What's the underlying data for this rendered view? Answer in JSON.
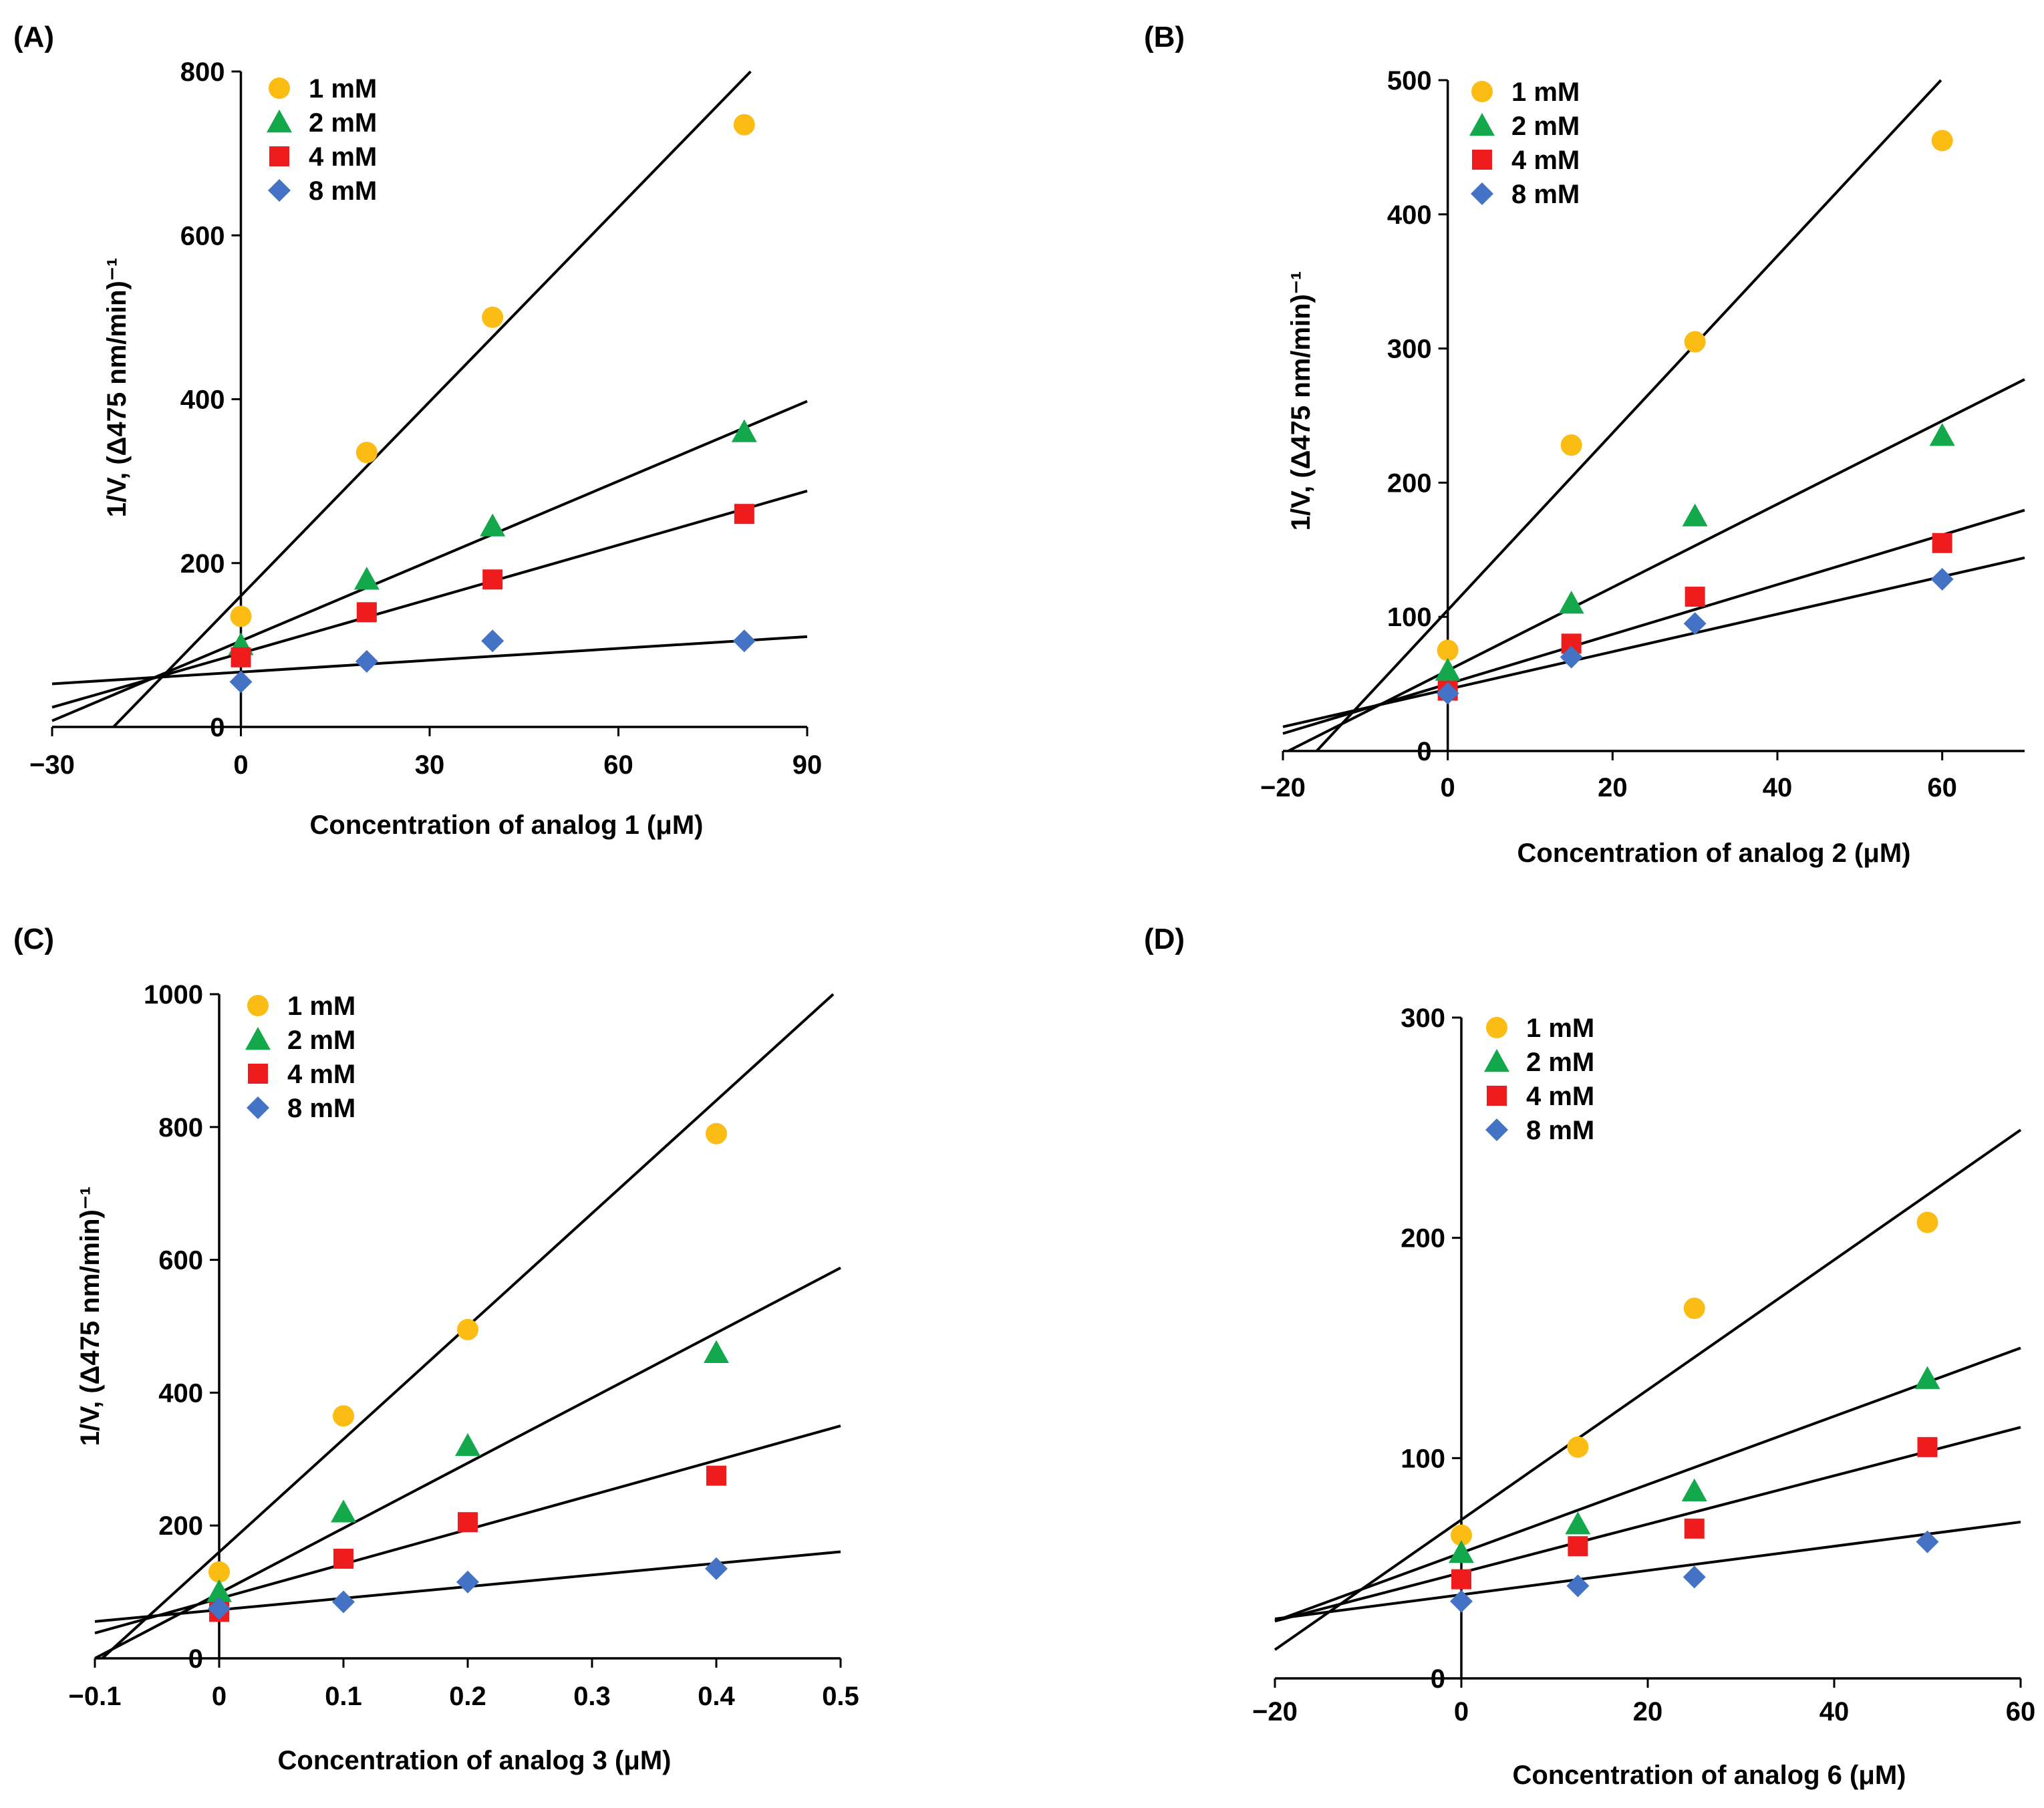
{
  "colors": {
    "1 mM": "#FBBC14",
    "2 mM": "#12A84B",
    "4 mM": "#EE1C1C",
    "8 mM": "#4472C4"
  },
  "chart_data": [
    {
      "type": "scatter",
      "panel": "(A)",
      "xlabel": "Concentration of analog 1 (μM)",
      "ylabel": "1/V, (Δ475 nm/min)⁻¹",
      "xlim": [
        -30,
        90
      ],
      "ylim": [
        0,
        800
      ],
      "xticks": [
        -30,
        0,
        30,
        60,
        90
      ],
      "xtick_labels": [
        "−30",
        "0",
        "30",
        "60",
        "90"
      ],
      "yticks": [
        0,
        200,
        400,
        600,
        800
      ],
      "ytick_labels": [
        "0",
        "200",
        "400",
        "600",
        "800"
      ],
      "x": [
        0,
        20,
        40,
        80
      ],
      "legend_position": "top-left",
      "series": [
        {
          "name": "1 mM",
          "marker": "circle",
          "values": [
            135,
            335,
            500,
            735
          ],
          "fit": {
            "slope": 7.9,
            "intercept": 160
          }
        },
        {
          "name": "2 mM",
          "marker": "triangle",
          "values": [
            100,
            180,
            245,
            360
          ],
          "fit": {
            "slope": 3.25,
            "intercept": 105
          }
        },
        {
          "name": "4 mM",
          "marker": "square",
          "values": [
            85,
            140,
            180,
            260
          ],
          "fit": {
            "slope": 2.2,
            "intercept": 90
          }
        },
        {
          "name": "8 mM",
          "marker": "diamond",
          "values": [
            55,
            80,
            105,
            105
          ],
          "fit": {
            "slope": 0.48,
            "intercept": 67
          }
        }
      ]
    },
    {
      "type": "scatter",
      "panel": "(B)",
      "xlabel": "Concentration of analog 2 (μM)",
      "ylabel": "1/V, (Δ475 nm/min)⁻¹",
      "xlim": [
        -20,
        70
      ],
      "ylim": [
        0,
        500
      ],
      "xticks": [
        -20,
        0,
        20,
        40,
        60
      ],
      "xtick_labels": [
        "−20",
        "0",
        "20",
        "40",
        "60"
      ],
      "yticks": [
        0,
        100,
        200,
        300,
        400,
        500
      ],
      "ytick_labels": [
        "0",
        "100",
        "200",
        "300",
        "400",
        "500"
      ],
      "x": [
        0,
        15,
        30,
        60
      ],
      "legend_position": "top-left",
      "series": [
        {
          "name": "1 mM",
          "marker": "circle",
          "values": [
            75,
            228,
            305,
            455
          ],
          "fit": {
            "slope": 6.6,
            "intercept": 105
          }
        },
        {
          "name": "2 mM",
          "marker": "triangle",
          "values": [
            60,
            110,
            175,
            235
          ],
          "fit": {
            "slope": 3.1,
            "intercept": 60
          }
        },
        {
          "name": "4 mM",
          "marker": "square",
          "values": [
            45,
            80,
            115,
            155
          ],
          "fit": {
            "slope": 1.85,
            "intercept": 50
          }
        },
        {
          "name": "8 mM",
          "marker": "diamond",
          "values": [
            43,
            70,
            95,
            128
          ],
          "fit": {
            "slope": 1.4,
            "intercept": 46
          }
        }
      ]
    },
    {
      "type": "scatter",
      "panel": "(C)",
      "xlabel": "Concentration of analog 3 (μM)",
      "ylabel": "1/V, (Δ475 nm/min)⁻¹",
      "xlim": [
        -0.1,
        0.5
      ],
      "ylim": [
        0,
        1000
      ],
      "xticks": [
        -0.1,
        0,
        0.1,
        0.2,
        0.3,
        0.4,
        0.5
      ],
      "xtick_labels": [
        "−0.1",
        "0",
        "0.1",
        "0.2",
        "0.3",
        "0.4",
        "0.5"
      ],
      "yticks": [
        0,
        200,
        400,
        600,
        800,
        1000
      ],
      "ytick_labels": [
        "0",
        "200",
        "400",
        "600",
        "800",
        "1000"
      ],
      "x": [
        0,
        0.1,
        0.2,
        0.4
      ],
      "legend_position": "top-left",
      "series": [
        {
          "name": "1 mM",
          "marker": "circle",
          "values": [
            130,
            365,
            495,
            790
          ],
          "fit": {
            "slope": 1700,
            "intercept": 160
          }
        },
        {
          "name": "2 mM",
          "marker": "triangle",
          "values": [
            100,
            220,
            320,
            460
          ],
          "fit": {
            "slope": 980,
            "intercept": 98
          }
        },
        {
          "name": "4 mM",
          "marker": "square",
          "values": [
            70,
            150,
            205,
            275
          ],
          "fit": {
            "slope": 520,
            "intercept": 90
          }
        },
        {
          "name": "8 mM",
          "marker": "diamond",
          "values": [
            75,
            85,
            115,
            135
          ],
          "fit": {
            "slope": 175,
            "intercept": 73
          }
        }
      ]
    },
    {
      "type": "scatter",
      "panel": "(D)",
      "xlabel": "Concentration of analog 6 (μM)",
      "ylabel": "",
      "xlim": [
        -20,
        60
      ],
      "ylim": [
        0,
        300
      ],
      "xticks": [
        -20,
        0,
        20,
        40,
        60
      ],
      "xtick_labels": [
        "−20",
        "0",
        "20",
        "40",
        "60"
      ],
      "yticks": [
        0,
        100,
        200,
        300
      ],
      "ytick_labels": [
        "0",
        "100",
        "200",
        "300"
      ],
      "x": [
        0,
        12.5,
        25,
        50
      ],
      "legend_position": "top-left",
      "series": [
        {
          "name": "1 mM",
          "marker": "circle",
          "values": [
            65,
            105,
            168,
            207
          ],
          "fit": {
            "slope": 2.95,
            "intercept": 72
          }
        },
        {
          "name": "2 mM",
          "marker": "triangle",
          "values": [
            57,
            70,
            85,
            136
          ],
          "fit": {
            "slope": 1.55,
            "intercept": 57
          }
        },
        {
          "name": "4 mM",
          "marker": "square",
          "values": [
            45,
            60,
            68,
            105
          ],
          "fit": {
            "slope": 1.1,
            "intercept": 48
          }
        },
        {
          "name": "8 mM",
          "marker": "diamond",
          "values": [
            35,
            42,
            46,
            62
          ],
          "fit": {
            "slope": 0.55,
            "intercept": 38
          }
        }
      ]
    }
  ]
}
